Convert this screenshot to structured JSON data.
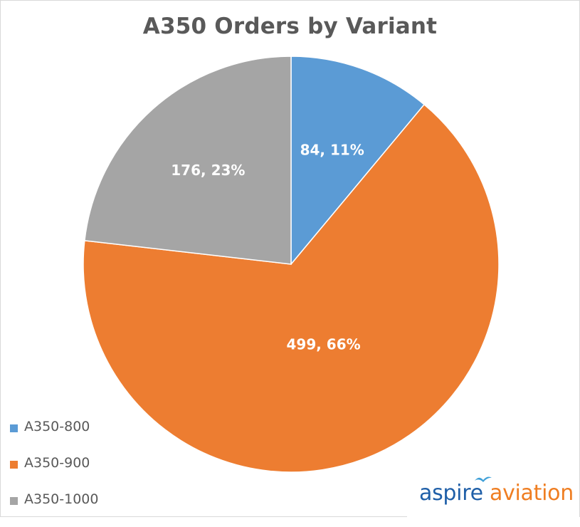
{
  "chart_data": {
    "type": "pie",
    "title": "A350 Orders by Variant",
    "categories": [
      "A350-800",
      "A350-900",
      "A350-1000"
    ],
    "values": [
      84,
      499,
      176
    ],
    "percent_labels": [
      "84, 11%",
      "499, 66%",
      "176, 23%"
    ],
    "colors": [
      "#5b9bd5",
      "#ed7d31",
      "#a5a5a5"
    ],
    "start_angle_deg": 0,
    "direction": "clockwise",
    "legend_position": "bottom-left",
    "data_labels": "value, percent"
  },
  "logo": {
    "word1": "aspire",
    "word2": "aviation",
    "icon": "bird-icon",
    "colors": {
      "word1": "#1f5fa8",
      "word2": "#ef7e22"
    }
  }
}
